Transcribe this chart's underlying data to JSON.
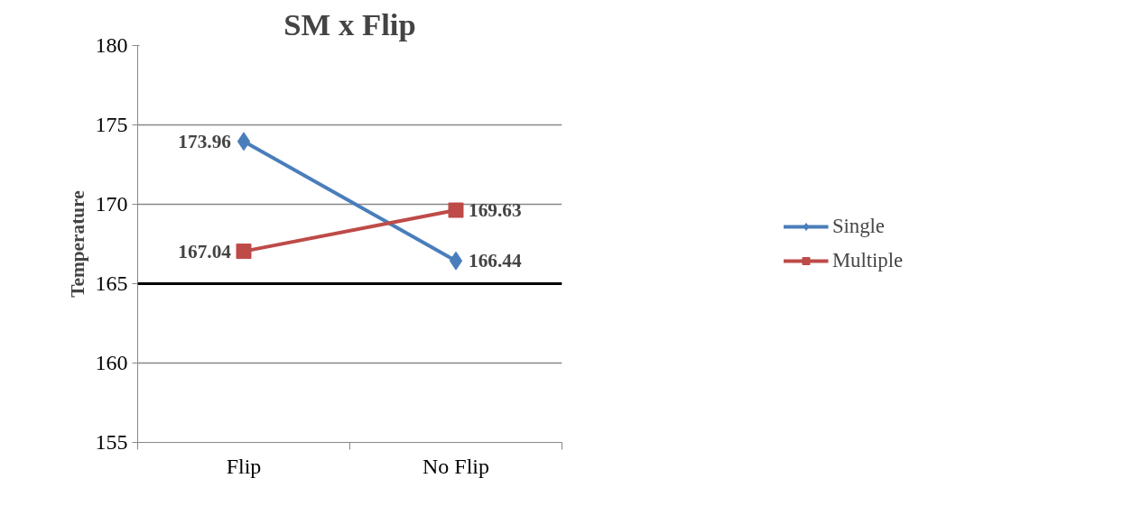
{
  "chart_data": {
    "type": "line",
    "title": "SM x Flip",
    "ylabel": "Temperature",
    "categories": [
      "Flip",
      "No Flip"
    ],
    "series": [
      {
        "name": "Single",
        "color": "#4a7ebb",
        "values": [
          173.96,
          166.44
        ],
        "marker": "diamond"
      },
      {
        "name": "Multiple",
        "color": "#be4b48",
        "values": [
          167.04,
          169.63
        ],
        "marker": "square"
      }
    ],
    "ylim": [
      155,
      180
    ],
    "yticks": [
      155,
      160,
      165,
      170,
      175,
      180
    ],
    "grid": "y",
    "legend": "right",
    "data_labels": true,
    "line_style": "solid",
    "ref_lines": [
      {
        "axis": "y",
        "value": 165,
        "color": "#000000"
      }
    ]
  }
}
